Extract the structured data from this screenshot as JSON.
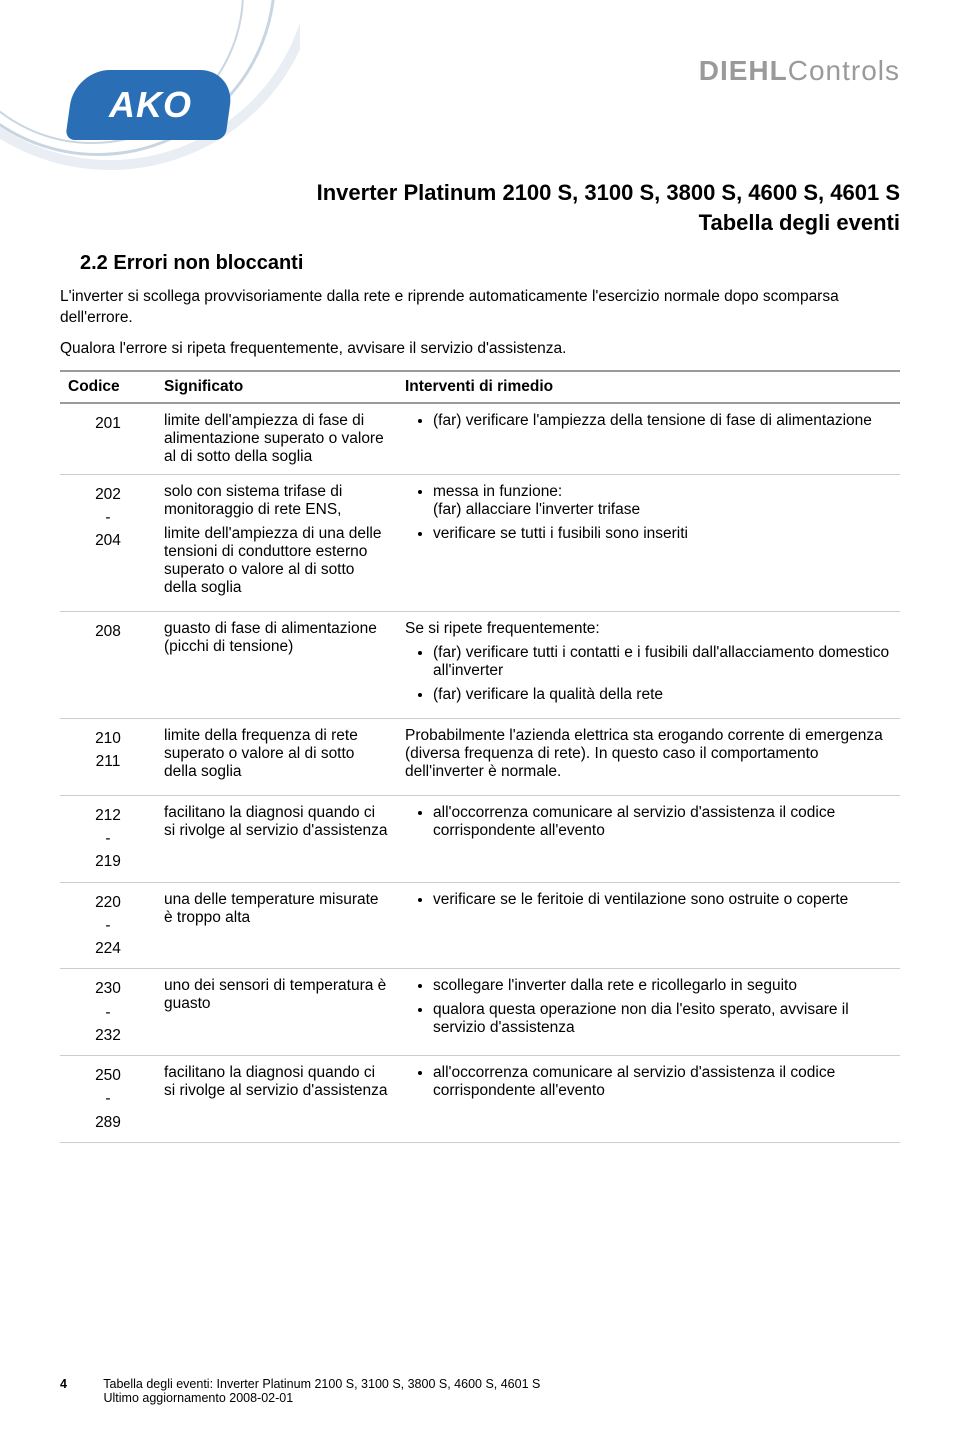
{
  "header": {
    "logo_ako_text": "AKO",
    "logo_diehl_bold": "DIEHL",
    "logo_diehl_light": "Controls"
  },
  "doc": {
    "title": "Inverter Platinum 2100 S, 3100 S, 3800 S, 4600 S, 4601 S",
    "subtitle": "Tabella degli eventi"
  },
  "section": {
    "heading": "2.2  Errori non bloccanti",
    "para1": "L'inverter si scollega provvisoriamente dalla rete e riprende automaticamente l'esercizio normale dopo scomparsa dell'errore.",
    "para2": "Qualora l'errore si ripeta frequentemente, avvisare il servizio d'assistenza."
  },
  "table": {
    "headers": {
      "code": "Codice",
      "sig": "Significato",
      "rem": "Interventi di rimedio"
    },
    "rows": [
      {
        "code": "201",
        "sig": "limite dell'ampiezza di fase di alimentazione superato o valore al di sotto della soglia",
        "rem_bullets": [
          "(far) verificare l'ampiezza della tensione di fase di alimentazione"
        ]
      },
      {
        "code": "202\n-\n204",
        "sig_multi": [
          "solo con sistema trifase di monitoraggio di rete ENS,",
          "limite dell'ampiezza di una delle tensioni di conduttore esterno superato o valore al di sotto della soglia"
        ],
        "rem_bullets": [
          "messa in funzione:\n(far) allacciare l'inverter trifase",
          "verificare se tutti i fusibili sono inseriti"
        ]
      },
      {
        "code": "208",
        "sig": "guasto di fase di alimentazione (picchi di tensione)",
        "rem_pre": "Se si ripete frequentemente:",
        "rem_bullets": [
          "(far) verificare tutti i contatti e i fusibili dall'allacciamento domestico all'inverter",
          "(far) verificare la qualità della rete"
        ]
      },
      {
        "code": "210\n211",
        "sig": "limite della frequenza di rete superato o valore al di sotto della soglia",
        "rem_text": "Probabilmente l'azienda elettrica sta erogando corrente di emergenza (diversa frequenza di rete). In questo caso il comportamento dell'inverter è normale."
      },
      {
        "code": "212\n-\n219",
        "sig": "facilitano la diagnosi quando ci si rivolge al servizio d'assistenza",
        "rem_bullets": [
          "all'occorrenza comunicare al servizio d'assistenza il codice corrispondente all'evento"
        ]
      },
      {
        "code": "220\n-\n224",
        "sig": "una delle temperature misurate è troppo alta",
        "rem_bullets": [
          "verificare se le feritoie di ventilazione sono ostruite o coperte"
        ]
      },
      {
        "code": "230\n-\n232",
        "sig": "uno dei sensori di temperatura è guasto",
        "rem_bullets": [
          "scollegare l'inverter dalla rete e ricollegarlo in seguito",
          "qualora questa operazione non dia l'esito sperato, avvisare il servizio d'assistenza"
        ]
      },
      {
        "code": "250\n-\n289",
        "sig": "facilitano la diagnosi quando ci si rivolge al servizio d'assistenza",
        "rem_bullets": [
          "all'occorrenza comunicare al servizio d'assistenza il codice corrispondente all'evento"
        ]
      }
    ]
  },
  "footer": {
    "page": "4",
    "line1": "Tabella degli eventi: Inverter Platinum 2100 S, 3100 S, 3800 S, 4600 S, 4601 S",
    "line2": "Ultimo aggiornamento 2008-02-01"
  },
  "colors": {
    "logo_blue": "#2a6fb5",
    "arc_light": "#e8eef4",
    "arc_mid": "#c9d6e2",
    "grey_text": "#9a9a9a",
    "row_border": "#cccccc",
    "header_border": "#9a9a9a"
  }
}
